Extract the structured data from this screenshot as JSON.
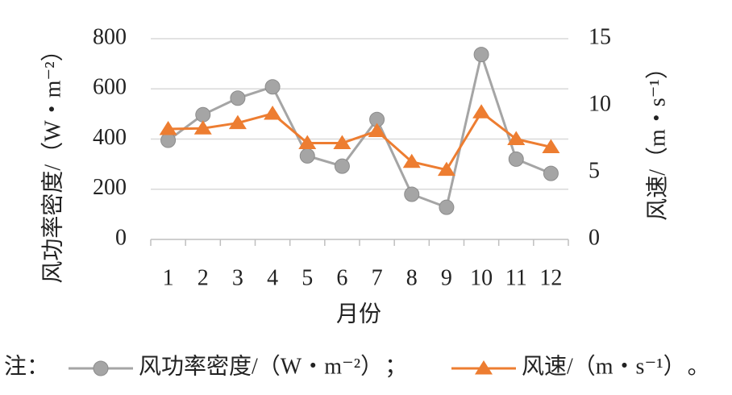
{
  "chart_data": {
    "type": "line",
    "categories": [
      "1",
      "2",
      "3",
      "4",
      "5",
      "6",
      "7",
      "8",
      "9",
      "10",
      "11",
      "12"
    ],
    "x_label": "月份",
    "y_label": "风功率密度/（W・m⁻²）",
    "y2_label": "风速/（m・s⁻¹）",
    "series": [
      {
        "name": "风功率密度/（W・m⁻²）",
        "color": "#a5a5a5",
        "marker": "circle",
        "values": [
          395,
          497,
          563,
          608,
          333,
          292,
          478,
          180,
          128,
          737,
          320,
          263
        ]
      },
      {
        "name": "风速/（m・s⁻¹）",
        "color": "#ed7d31",
        "marker": "triangle",
        "axis": "y2",
        "values": [
          8.25,
          8.3,
          8.7,
          9.4,
          7.2,
          7.2,
          8.1,
          5.8,
          5.2,
          9.5,
          7.5,
          6.9
        ]
      }
    ],
    "ylim": [
      0,
      800
    ],
    "yticks": [
      0,
      200,
      400,
      600,
      800
    ],
    "y2lim": [
      0,
      15
    ],
    "y2ticks": [
      0,
      5,
      10,
      15
    ],
    "grid": true,
    "legend_note": "注：",
    "legend_separators": [
      "；",
      "。"
    ]
  }
}
